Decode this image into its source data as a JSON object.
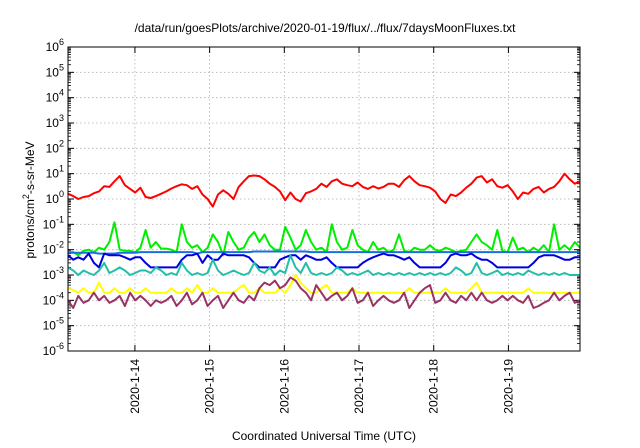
{
  "chart_data": {
    "type": "line",
    "title": "/data/run/goesPlots/archive/2020-01-19/flux/../flux/7daysMoonFluxes.txt",
    "xlabel": "Coordinated Universal Time (UTC)",
    "ylabel_parts": [
      "protons/cm",
      "2",
      "-s-sr-MeV"
    ],
    "y_scale": "log",
    "ylim": [
      1e-06,
      1000000.0
    ],
    "xlim": [
      "2020-01-13 02:30",
      "2020-01-19 23:00"
    ],
    "y_ticks": [
      {
        "base": "10",
        "exp": "-6"
      },
      {
        "base": "10",
        "exp": "-5"
      },
      {
        "base": "10",
        "exp": "-4"
      },
      {
        "base": "10",
        "exp": "-3"
      },
      {
        "base": "10",
        "exp": "-2"
      },
      {
        "base": "10",
        "exp": "-1"
      },
      {
        "base": "10",
        "exp": "0"
      },
      {
        "base": "10",
        "exp": "1"
      },
      {
        "base": "10",
        "exp": "2"
      },
      {
        "base": "10",
        "exp": "3"
      },
      {
        "base": "10",
        "exp": "4"
      },
      {
        "base": "10",
        "exp": "5"
      },
      {
        "base": "10",
        "exp": "6"
      }
    ],
    "x_ticks": [
      "2020-1-14",
      "2020-1-15",
      "2020-1-16",
      "2020-1-17",
      "2020-1-18",
      "2020-1-19"
    ],
    "grid": true,
    "legend": "none",
    "series": [
      {
        "color": "#ff0000",
        "values": [
          1.6,
          1.3,
          1.0,
          1.2,
          1.3,
          1.7,
          2.0,
          3.2,
          3.0,
          5.0,
          8.0,
          3.5,
          2.5,
          1.8,
          2.8,
          1.2,
          1.1,
          1.3,
          1.6,
          2.0,
          2.6,
          3.2,
          3.8,
          3.5,
          2.5,
          3.2,
          1.5,
          1.0,
          0.5,
          1.5,
          2.2,
          1.6,
          1.0,
          3.0,
          5.0,
          8.0,
          8.5,
          8.0,
          6.0,
          4.0,
          3.0,
          2.0,
          0.9,
          1.8,
          1.0,
          0.8,
          1.7,
          2.0,
          2.5,
          4.0,
          3.0,
          5.0,
          6.0,
          4.0,
          3.5,
          3.2,
          4.5,
          3.0,
          2.5,
          3.2,
          2.6,
          3.0,
          4.0,
          4.0,
          3.0,
          5.5,
          8.0,
          5.0,
          3.5,
          3.2,
          2.8,
          2.0,
          1.0,
          0.7,
          1.5,
          1.3,
          1.8,
          2.8,
          4.0,
          7.0,
          8.0,
          4.5,
          6.0,
          3.2,
          2.8,
          3.5,
          2.0,
          1.0,
          1.8,
          1.6,
          2.5,
          3.0,
          1.8,
          2.5,
          3.0,
          5.0,
          10.0,
          6.0,
          4.0,
          5.0
        ]
      },
      {
        "color": "#00ee00",
        "values": [
          0.008,
          0.008,
          0.006,
          0.009,
          0.01,
          0.008,
          0.012,
          0.01,
          0.02,
          0.12,
          0.01,
          0.009,
          0.009,
          0.008,
          0.012,
          0.06,
          0.012,
          0.02,
          0.011,
          0.011,
          0.01,
          0.008,
          0.1,
          0.02,
          0.012,
          0.015,
          0.008,
          0.012,
          0.04,
          0.02,
          0.006,
          0.05,
          0.02,
          0.01,
          0.012,
          0.03,
          0.05,
          0.02,
          0.04,
          0.015,
          0.01,
          0.01,
          0.08,
          0.03,
          0.01,
          0.015,
          0.06,
          0.02,
          0.01,
          0.012,
          0.008,
          0.1,
          0.02,
          0.01,
          0.012,
          0.06,
          0.015,
          0.01,
          0.008,
          0.02,
          0.01,
          0.012,
          0.008,
          0.01,
          0.04,
          0.009,
          0.008,
          0.012,
          0.01,
          0.01,
          0.015,
          0.01,
          0.009,
          0.012,
          0.01,
          0.008,
          0.009,
          0.01,
          0.02,
          0.04,
          0.02,
          0.015,
          0.01,
          0.06,
          0.009,
          0.008,
          0.03,
          0.01,
          0.012,
          0.008,
          0.012,
          0.009,
          0.015,
          0.008,
          0.1,
          0.01,
          0.015,
          0.01,
          0.02,
          0.012
        ]
      },
      {
        "color": "#1a6fe0",
        "values": [
          0.0075,
          0.0075,
          0.0075,
          0.0075,
          0.0075,
          0.0075,
          0.007,
          0.007,
          0.007,
          0.007,
          0.0075,
          0.0075,
          0.0075,
          0.0075,
          0.008,
          0.008,
          0.008,
          0.008,
          0.008,
          0.008,
          0.008,
          0.008,
          0.008,
          0.008,
          0.008,
          0.007,
          0.008,
          0.008,
          0.008,
          0.008,
          0.008,
          0.008,
          0.008,
          0.008,
          0.008,
          0.008,
          0.0085,
          0.0085,
          0.0085,
          0.0085,
          0.0085,
          0.0085,
          0.0085,
          0.0085,
          0.0085,
          0.0085,
          0.0085,
          0.008,
          0.008,
          0.008,
          0.008,
          0.008,
          0.008,
          0.008,
          0.008,
          0.008,
          0.008,
          0.008,
          0.008,
          0.008,
          0.008,
          0.008,
          0.008,
          0.008,
          0.008,
          0.008,
          0.008,
          0.008,
          0.008,
          0.008,
          0.008,
          0.008,
          0.008,
          0.008,
          0.008,
          0.008,
          0.008,
          0.008,
          0.008,
          0.008,
          0.008,
          0.008,
          0.008,
          0.008,
          0.008,
          0.008,
          0.008,
          0.008,
          0.008,
          0.008,
          0.008,
          0.008,
          0.008,
          0.008,
          0.008,
          0.008,
          0.008,
          0.008,
          0.008,
          0.008
        ]
      },
      {
        "color": "#0000dd",
        "values": [
          0.006,
          0.004,
          0.005,
          0.004,
          0.007,
          0.003,
          0.002,
          0.007,
          0.006,
          0.006,
          0.006,
          0.005,
          0.004,
          0.005,
          0.005,
          0.003,
          0.002,
          0.002,
          0.002,
          0.002,
          0.002,
          0.002,
          0.004,
          0.006,
          0.006,
          0.007,
          0.003,
          0.006,
          0.004,
          0.004,
          0.007,
          0.006,
          0.006,
          0.006,
          0.006,
          0.005,
          0.003,
          0.002,
          0.002,
          0.002,
          0.002,
          0.004,
          0.005,
          0.006,
          0.006,
          0.004,
          0.006,
          0.005,
          0.004,
          0.004,
          0.005,
          0.003,
          0.002,
          0.002,
          0.002,
          0.002,
          0.002,
          0.003,
          0.004,
          0.005,
          0.006,
          0.007,
          0.006,
          0.006,
          0.005,
          0.004,
          0.005,
          0.003,
          0.002,
          0.002,
          0.002,
          0.002,
          0.002,
          0.003,
          0.006,
          0.007,
          0.006,
          0.006,
          0.007,
          0.005,
          0.004,
          0.004,
          0.003,
          0.002,
          0.002,
          0.002,
          0.002,
          0.002,
          0.002,
          0.002,
          0.003,
          0.005,
          0.006,
          0.006,
          0.006,
          0.005,
          0.004,
          0.004,
          0.005,
          0.005
        ]
      },
      {
        "color": "#20c0a8",
        "values": [
          0.002,
          0.0015,
          0.001,
          0.0015,
          0.0012,
          0.001,
          0.0015,
          0.003,
          0.0012,
          0.0015,
          0.002,
          0.0015,
          0.001,
          0.0012,
          0.0015,
          0.0015,
          0.0012,
          0.002,
          0.0015,
          0.001,
          0.0012,
          0.001,
          0.003,
          0.0015,
          0.001,
          0.0012,
          0.001,
          0.0012,
          0.004,
          0.0015,
          0.001,
          0.0012,
          0.0015,
          0.0012,
          0.001,
          0.0012,
          0.003,
          0.0015,
          0.0012,
          0.002,
          0.001,
          0.0015,
          0.0012,
          0.006,
          0.002,
          0.0012,
          0.003,
          0.0012,
          0.001,
          0.0012,
          0.001,
          0.0012,
          0.002,
          0.0015,
          0.001,
          0.0012,
          0.001,
          0.0012,
          0.0015,
          0.001,
          0.0012,
          0.001,
          0.0012,
          0.001,
          0.0012,
          0.001,
          0.0012,
          0.001,
          0.0012,
          0.001,
          0.0012,
          0.001,
          0.0012,
          0.001,
          0.0012,
          0.002,
          0.0015,
          0.001,
          0.0012,
          0.003,
          0.0012,
          0.001,
          0.0012,
          0.0015,
          0.001,
          0.0012,
          0.001,
          0.0012,
          0.001,
          0.0015,
          0.0012,
          0.001,
          0.0012,
          0.001,
          0.0012,
          0.001,
          0.0012,
          0.001,
          0.001,
          0.001
        ]
      },
      {
        "color": "#ffff00",
        "values": [
          0.0003,
          0.00025,
          0.0002,
          0.0003,
          0.0002,
          0.0002,
          0.0005,
          0.0002,
          0.0002,
          0.0003,
          0.0002,
          0.0002,
          0.0003,
          0.0002,
          0.0002,
          0.0003,
          0.0002,
          0.0002,
          0.0002,
          0.0002,
          0.0003,
          0.0002,
          0.0002,
          0.0003,
          0.0002,
          0.0004,
          0.0002,
          0.0002,
          0.0003,
          0.0002,
          0.0002,
          0.0002,
          0.0002,
          0.0003,
          0.0004,
          0.0002,
          0.0002,
          0.0003,
          0.0002,
          0.0002,
          0.0002,
          0.0003,
          0.0002,
          0.0004,
          0.001,
          0.0005,
          0.0003,
          0.0002,
          0.0002,
          0.0003,
          0.0004,
          0.0002,
          0.0002,
          0.0002,
          0.0002,
          0.0003,
          0.0002,
          0.0002,
          0.0002,
          0.0002,
          0.0002,
          0.0002,
          0.0002,
          0.0002,
          0.0002,
          0.0002,
          0.0003,
          0.0002,
          0.0002,
          0.0002,
          0.0002,
          0.0002,
          0.0002,
          0.0003,
          0.0002,
          0.0002,
          0.0002,
          0.0002,
          0.0003,
          0.0005,
          0.0002,
          0.0002,
          0.0002,
          0.0002,
          0.0002,
          0.0002,
          0.0002,
          0.0002,
          0.0002,
          0.0003,
          0.0002,
          0.0002,
          0.0002,
          0.0002,
          0.0002,
          0.0002,
          0.0002,
          0.0002,
          0.0002,
          0.0002
        ]
      },
      {
        "color": "#993366",
        "values": [
          0.0001,
          5e-05,
          0.00015,
          8e-05,
          0.0001,
          0.0002,
          0.0001,
          0.00015,
          8e-05,
          0.0001,
          0.00015,
          6e-05,
          0.0002,
          0.0001,
          0.00015,
          0.0001,
          6e-05,
          0.0001,
          8e-05,
          0.0001,
          0.00015,
          6e-05,
          0.0001,
          0.0002,
          7e-05,
          0.0001,
          0.0002,
          6e-05,
          0.0001,
          0.00015,
          5e-05,
          0.0001,
          0.0002,
          0.0001,
          8e-05,
          0.00015,
          0.0001,
          0.0003,
          0.0005,
          0.0004,
          0.0006,
          0.0003,
          0.0004,
          0.0008,
          0.0006,
          0.0003,
          0.0002,
          0.0001,
          0.0004,
          0.0002,
          0.0001,
          0.00015,
          0.0002,
          0.0001,
          0.00015,
          0.0003,
          8e-05,
          0.0001,
          0.0002,
          6e-05,
          0.0001,
          0.00015,
          0.0001,
          8e-05,
          0.0001,
          0.0002,
          5e-05,
          0.0001,
          0.0002,
          0.0003,
          0.0004,
          8e-05,
          0.0001,
          0.0002,
          0.0001,
          8e-05,
          0.00015,
          0.0001,
          0.0002,
          0.0001,
          0.0002,
          0.0001,
          8e-05,
          0.0001,
          0.00015,
          0.0001,
          0.00015,
          0.0001,
          8e-05,
          0.00015,
          5e-05,
          6e-05,
          8e-05,
          0.0001,
          0.0002,
          0.0001,
          0.00015,
          0.0002,
          8e-05,
          0.0001
        ]
      }
    ]
  }
}
